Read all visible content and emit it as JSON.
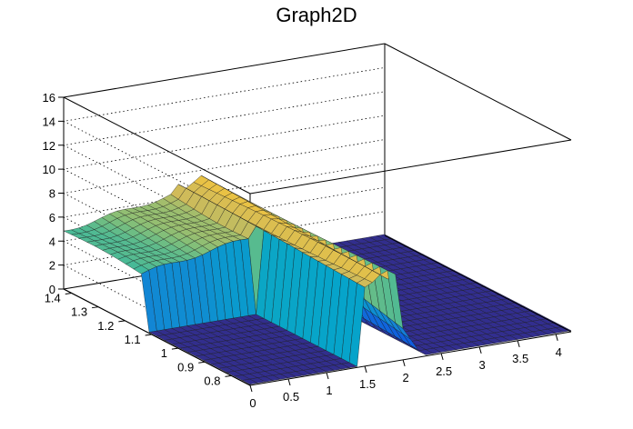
{
  "chart_data": {
    "type": "surface3d",
    "title": "Graph2D",
    "xlabel": "",
    "ylabel": "",
    "zlabel": "",
    "xlim": [
      0,
      4.2
    ],
    "ylim": [
      0.73,
      1.43
    ],
    "zlim": [
      0,
      16
    ],
    "x_ticks": [
      "0",
      "0.5",
      "1",
      "1.5",
      "2",
      "2.5",
      "3",
      "3.5",
      "4"
    ],
    "y_ticks": [
      "0.8",
      "0.9",
      "1",
      "1.1",
      "1.2",
      "1.3",
      "1.4"
    ],
    "z_ticks": [
      "0",
      "2",
      "4",
      "6",
      "8",
      "10",
      "12",
      "14",
      "16"
    ],
    "grid": true,
    "colormap": [
      "#352a87",
      "#0f5cdd",
      "#1481d6",
      "#06a4ca",
      "#2eb7a4",
      "#87bf77",
      "#d1bb59",
      "#fec832",
      "#f9fb0e"
    ],
    "surface_regions": [
      {
        "x_range": [
          0,
          1.5
        ],
        "y_range": [
          1.1,
          1.43
        ],
        "z_approx": [
          4.5,
          6.5
        ],
        "note_free": true
      },
      {
        "x_range": [
          0,
          1.5
        ],
        "y_range": [
          0.73,
          1.1
        ],
        "z_approx": [
          0,
          0.3
        ]
      },
      {
        "x_range": [
          1.5,
          2.1
        ],
        "y_range": [
          0.73,
          1.43
        ],
        "z_approx": [
          6,
          8.5
        ]
      },
      {
        "x_range": [
          2.1,
          4.2
        ],
        "y_range": [
          0.73,
          1.43
        ],
        "z_approx": [
          0,
          0.5
        ]
      }
    ]
  }
}
